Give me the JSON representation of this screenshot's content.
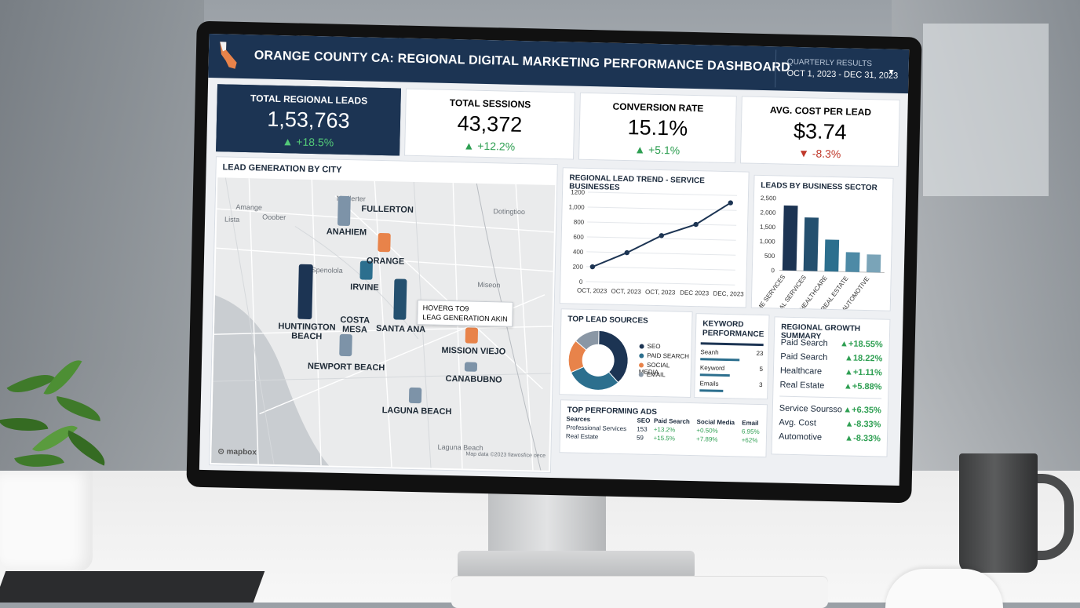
{
  "header": {
    "title": "ORANGE COUNTY CA: REGIONAL DIGITAL MARKETING PERFORMANCE DASHBOARD",
    "period_label": "QUARTERLY RESULTS",
    "period_value": "OCT 1, 2023 - DEC 31, 2023"
  },
  "kpis": [
    {
      "title": "TOTAL REGIONAL LEADS",
      "value": "1,53,763",
      "delta": "+18.5%",
      "direction": "up"
    },
    {
      "title": "TOTAL SESSIONS",
      "value": "43,372",
      "delta": "+12.2%",
      "direction": "up"
    },
    {
      "title": "CONVERSION RATE",
      "value": "15.1%",
      "delta": "+5.1%",
      "direction": "up"
    },
    {
      "title": "AVG. COST PER LEAD",
      "value": "$3.74",
      "delta": "-8.3%",
      "direction": "down"
    }
  ],
  "map": {
    "title": "LEAD GENERATION BY CITY",
    "cities": [
      "FULLERTON",
      "ANAHIEM",
      "ORANGE",
      "IRVINE",
      "HUNTINGTON BEACH",
      "COSTA MESA",
      "SANTA ANA",
      "MISSION VIEJO",
      "NEWPORT BEACH",
      "CANABUBNO",
      "LAGUNA BEACH"
    ],
    "faint_labels": [
      "Nedlerter",
      "Amange",
      "Lista",
      "Ooober",
      "Spenolola",
      "Dotingtioo",
      "Miseon",
      "Laguna Beach"
    ],
    "tooltip_line1": "HOVERG TO9",
    "tooltip_line2": "LEAG GENERATION AKIN",
    "attribution": "Map data ©2023 fiawosfice oece",
    "brand": "mapbox"
  },
  "chart_data": [
    {
      "type": "line",
      "title": "REGIONAL LEAD TREND - SERVICE BUSINESSES",
      "x": [
        "OCT, 2023",
        "OCT, 2023",
        "OCT, 2023",
        "DEC 2023",
        "DEC, 2023"
      ],
      "series": [
        {
          "values": [
            200,
            400,
            640,
            800,
            1100
          ]
        }
      ],
      "yticks": [
        0,
        200,
        400,
        600,
        800,
        "1,000",
        1200
      ],
      "ylim": [
        0,
        1200
      ],
      "color": "#1c3453"
    },
    {
      "type": "bar",
      "title": "LEADS BY BUSINESS SECTOR",
      "categories": [
        "HOME SERVICES",
        "PROFESSIONAL SERVICES",
        "HEALTHCARE",
        "REAL ESTATE",
        "AUTOMOTIVE"
      ],
      "values": [
        2250,
        1850,
        1100,
        680,
        620
      ],
      "yticks": [
        0,
        500,
        "1,000",
        "1,500",
        "2,000",
        "2,500"
      ],
      "ylim": [
        0,
        2500
      ],
      "colors": [
        "#1c3453",
        "#24506f",
        "#2c6f8e",
        "#4d8aa6",
        "#7aa4b8"
      ]
    },
    {
      "type": "pie",
      "title": "TOP LEAD SOURCES",
      "categories": [
        "SEO",
        "PAID SEARCH",
        "SOCIAL MEDIA",
        "EMAIL"
      ],
      "values": [
        38,
        30,
        18,
        14
      ],
      "colors": [
        "#1c3453",
        "#2c6f8e",
        "#e8834a",
        "#8a97a5"
      ]
    }
  ],
  "keywords": {
    "title_line1": "KEYWORD",
    "title_line2": "PERFORMANCE",
    "rows": [
      {
        "label": "Seanh",
        "value": "23",
        "fraction": 0.62
      },
      {
        "label": "Keyword",
        "value": "5",
        "fraction": 0.48
      },
      {
        "label": "Emails",
        "value": "3",
        "fraction": 0.38
      }
    ]
  },
  "growth": {
    "title": "REGIONAL GROWTH SUMMARY",
    "rows_a": [
      {
        "label": "Paid Search",
        "value": "+18.55%"
      },
      {
        "label": "Paid Search",
        "value": "18.22%"
      },
      {
        "label": "Healthcare",
        "value": "+1.11%"
      },
      {
        "label": "Real Estate",
        "value": "+5.88%"
      }
    ],
    "rows_b": [
      {
        "label": "Service Soursso",
        "value": "+6.35%"
      },
      {
        "label": "Avg. Cost",
        "value": "-8.33%"
      },
      {
        "label": "Automotive",
        "value": "-8.33%"
      }
    ]
  },
  "ads": {
    "title": "TOP PERFORMING ADS",
    "headers": [
      "Searces",
      "SEO",
      "Paid Search",
      "Social Media",
      "Email"
    ],
    "rows": [
      [
        "Professional Services",
        "153",
        "+13.2%",
        "+0.50%",
        "6.95%"
      ],
      [
        "Real Estate",
        "59",
        "+15.5%",
        "+7.89%",
        "+62%"
      ]
    ]
  },
  "colors": {
    "navy": "#1c3453",
    "teal": "#2c6f8e",
    "orange": "#e8834a",
    "green": "#2e9f52",
    "red": "#c0392b"
  }
}
